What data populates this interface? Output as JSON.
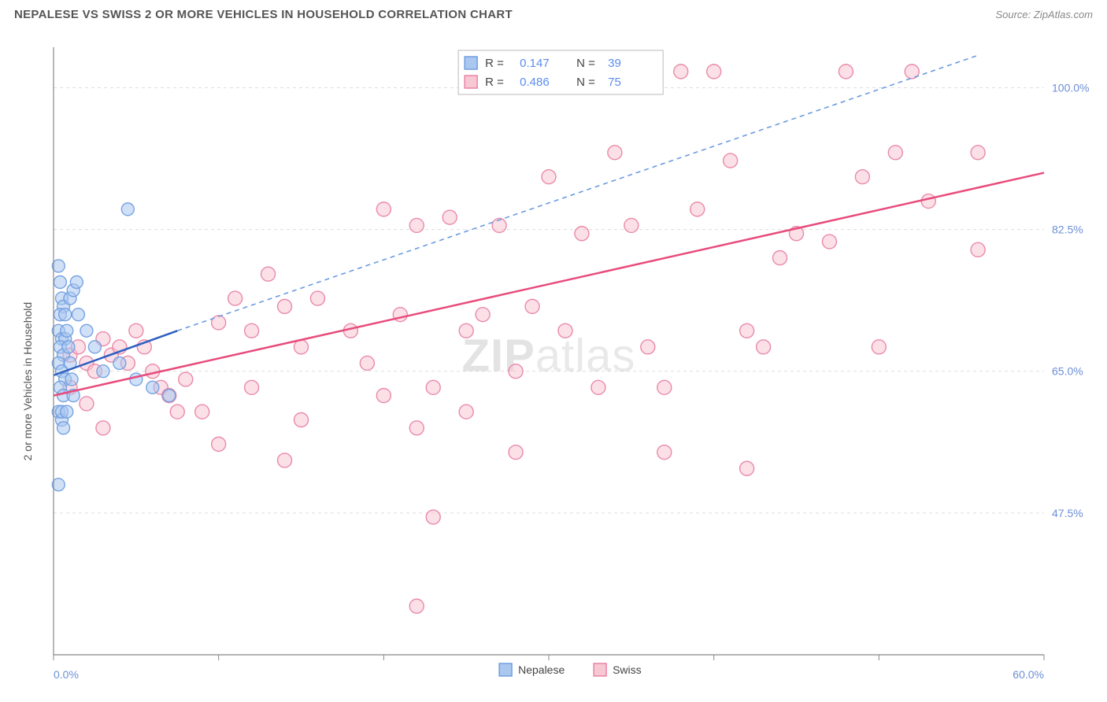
{
  "title": "NEPALESE VS SWISS 2 OR MORE VEHICLES IN HOUSEHOLD CORRELATION CHART",
  "source": "Source: ZipAtlas.com",
  "watermark_a": "ZIP",
  "watermark_b": "atlas",
  "chart": {
    "type": "scatter",
    "xlim": [
      0,
      60
    ],
    "ylim": [
      30,
      105
    ],
    "x_axis_label_min": "0.0%",
    "x_axis_label_max": "60.0%",
    "y_label": "2 or more Vehicles in Household",
    "y_ticks": [
      47.5,
      65.0,
      82.5,
      100.0
    ],
    "y_tick_labels": [
      "47.5%",
      "65.0%",
      "82.5%",
      "100.0%"
    ],
    "x_ticks": [
      0,
      10,
      20,
      30,
      40,
      50,
      60
    ],
    "grid_color": "#dddddd",
    "grid_dash": "4 4",
    "background_color": "#ffffff",
    "axis_line_color": "#888888",
    "plot_border_color": "#cccccc",
    "series": [
      {
        "name": "Nepalese",
        "marker_fill": "#a9c7ef",
        "marker_stroke": "#6b9be0",
        "marker_radius": 8,
        "line_color": "#2f5fc0",
        "line_width": 2.5,
        "line_dash_ext_color": "#6b9be0",
        "line_dash": "6 5",
        "R_label": "R =",
        "R": "0.147",
        "N_label": "N =",
        "N": "39",
        "trend": {
          "x1": 0,
          "y1": 64.5,
          "x2": 7.5,
          "y2": 70.0
        },
        "trend_ext_end": {
          "x": 56,
          "y": 104
        },
        "points": [
          [
            0.3,
            78
          ],
          [
            0.4,
            76
          ],
          [
            0.5,
            74
          ],
          [
            0.6,
            73
          ],
          [
            0.4,
            72
          ],
          [
            0.3,
            70
          ],
          [
            0.5,
            69
          ],
          [
            0.7,
            69
          ],
          [
            0.4,
            68
          ],
          [
            0.6,
            67
          ],
          [
            0.3,
            66
          ],
          [
            0.5,
            65
          ],
          [
            0.7,
            64
          ],
          [
            0.4,
            63
          ],
          [
            0.6,
            62
          ],
          [
            0.3,
            60
          ],
          [
            0.5,
            59
          ],
          [
            0.7,
            72
          ],
          [
            0.8,
            70
          ],
          [
            0.9,
            68
          ],
          [
            1.0,
            66
          ],
          [
            1.1,
            64
          ],
          [
            1.2,
            62
          ],
          [
            0.3,
            51
          ],
          [
            4.5,
            85
          ],
          [
            3.0,
            65
          ],
          [
            4.0,
            66
          ],
          [
            5.0,
            64
          ],
          [
            6.0,
            63
          ],
          [
            7.0,
            62
          ],
          [
            2.0,
            70
          ],
          [
            2.5,
            68
          ],
          [
            1.5,
            72
          ],
          [
            0.5,
            60
          ],
          [
            0.6,
            58
          ],
          [
            0.8,
            60
          ],
          [
            1.0,
            74
          ],
          [
            1.2,
            75
          ],
          [
            1.4,
            76
          ]
        ]
      },
      {
        "name": "Swiss",
        "marker_fill": "#f7c7d4",
        "marker_stroke": "#e87ea2",
        "marker_radius": 9,
        "line_color": "#e84b7c",
        "line_width": 2.5,
        "R_label": "R =",
        "R": "0.486",
        "N_label": "N =",
        "N": "75",
        "trend": {
          "x1": 0,
          "y1": 62.0,
          "x2": 60,
          "y2": 89.5
        },
        "points": [
          [
            1,
            67
          ],
          [
            1.5,
            68
          ],
          [
            2,
            66
          ],
          [
            2.5,
            65
          ],
          [
            3,
            69
          ],
          [
            3.5,
            67
          ],
          [
            4,
            68
          ],
          [
            4.5,
            66
          ],
          [
            5,
            70
          ],
          [
            5.5,
            68
          ],
          [
            6,
            65
          ],
          [
            6.5,
            63
          ],
          [
            7,
            62
          ],
          [
            7.5,
            60
          ],
          [
            8,
            64
          ],
          [
            2,
            61
          ],
          [
            3,
            58
          ],
          [
            1,
            63
          ],
          [
            10,
            71
          ],
          [
            11,
            74
          ],
          [
            12,
            70
          ],
          [
            13,
            77
          ],
          [
            14,
            73
          ],
          [
            15,
            68
          ],
          [
            15,
            59
          ],
          [
            16,
            74
          ],
          [
            9,
            60
          ],
          [
            10,
            56
          ],
          [
            12,
            63
          ],
          [
            14,
            54
          ],
          [
            18,
            70
          ],
          [
            19,
            66
          ],
          [
            20,
            62
          ],
          [
            20,
            85
          ],
          [
            21,
            72
          ],
          [
            22,
            58
          ],
          [
            22,
            83
          ],
          [
            23,
            47
          ],
          [
            23,
            63
          ],
          [
            24,
            84
          ],
          [
            25,
            70
          ],
          [
            25,
            60
          ],
          [
            26,
            72
          ],
          [
            27,
            83
          ],
          [
            28,
            65
          ],
          [
            28,
            55
          ],
          [
            29,
            73
          ],
          [
            22,
            36
          ],
          [
            30,
            89
          ],
          [
            31,
            70
          ],
          [
            32,
            82
          ],
          [
            33,
            63
          ],
          [
            34,
            92
          ],
          [
            35,
            83
          ],
          [
            36,
            68
          ],
          [
            37,
            55
          ],
          [
            37,
            63
          ],
          [
            38,
            102
          ],
          [
            39,
            85
          ],
          [
            40,
            102
          ],
          [
            41,
            91
          ],
          [
            42,
            70
          ],
          [
            42,
            53
          ],
          [
            43,
            68
          ],
          [
            44,
            79
          ],
          [
            45,
            82
          ],
          [
            47,
            81
          ],
          [
            48,
            102
          ],
          [
            49,
            89
          ],
          [
            50,
            68
          ],
          [
            51,
            92
          ],
          [
            52,
            102
          ],
          [
            53,
            86
          ],
          [
            56,
            80
          ],
          [
            56,
            92
          ]
        ]
      }
    ],
    "bottom_legend": [
      {
        "name": "Nepalese",
        "fill": "#a9c7ef",
        "stroke": "#6b9be0"
      },
      {
        "name": "Swiss",
        "fill": "#f7c7d4",
        "stroke": "#e87ea2"
      }
    ],
    "legend_box_fill": "#ffffff",
    "legend_box_stroke": "#bbbbbb"
  }
}
